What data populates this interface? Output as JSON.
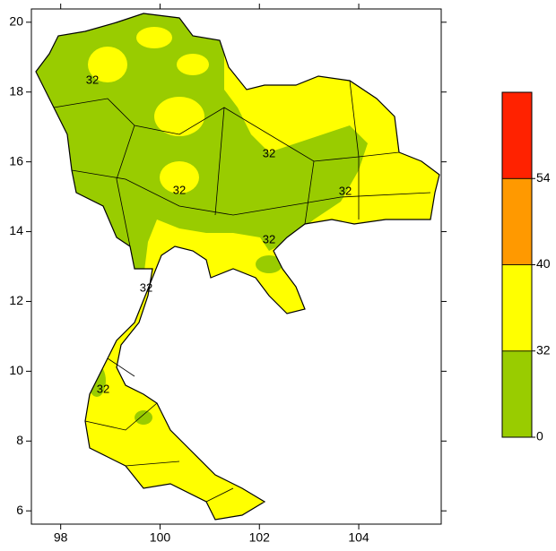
{
  "map": {
    "xlim": [
      97.41,
      105.66
    ],
    "ylim": [
      5.62,
      20.38
    ],
    "xticks": [
      98,
      100,
      102,
      104
    ],
    "yticks": [
      6,
      8,
      10,
      12,
      14,
      16,
      18,
      20
    ],
    "contour_labels": [
      32,
      32,
      32,
      32,
      32,
      32,
      32
    ]
  },
  "colorbar": {
    "levels": [
      0,
      32,
      40,
      54
    ],
    "colors": [
      "#99cc00",
      "#ffff00",
      "#ff9900",
      "#ff2200"
    ]
  }
}
